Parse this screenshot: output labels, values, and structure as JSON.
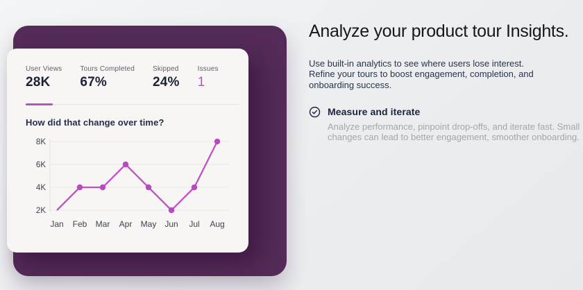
{
  "colors": {
    "panel_purple": "#542b58",
    "accent_magenta": "#bd53c5",
    "tab_indicator": "#b153c2",
    "dark_navy": "#1b2341",
    "card_bg": "#f7f6f4"
  },
  "card": {
    "stats": [
      {
        "label": "User Views",
        "value": "28K",
        "highlight": false
      },
      {
        "label": "Tours Completed",
        "value": "67%",
        "highlight": false
      },
      {
        "label": "Skipped",
        "value": "24%",
        "highlight": false
      },
      {
        "label": "Issues",
        "value": "1",
        "highlight": true
      }
    ],
    "chart_title": "How did that change over time?"
  },
  "chart_data": {
    "type": "line",
    "title": "How did that change over time?",
    "x": [
      "Jan",
      "Feb",
      "Mar",
      "Apr",
      "May",
      "Jun",
      "Jul",
      "Aug"
    ],
    "series": [
      {
        "name": "User Views",
        "values": [
          2000,
          4000,
          4000,
          6000,
          4000,
          2000,
          4000,
          8000
        ]
      }
    ],
    "xlabel": "",
    "ylabel": "",
    "ylim": [
      2000,
      8000
    ],
    "ytick_values": [
      2000,
      4000,
      6000,
      8000
    ],
    "ytick_labels": [
      "2K",
      "4K",
      "6K",
      "8K"
    ],
    "grid": true,
    "legend": false,
    "line_color": "#c052c6",
    "marker_color": "#b949c1",
    "show_first_marker": false
  },
  "content": {
    "heading": "Analyze your product tour Insights.",
    "intro_lines": [
      "Use built-in analytics to see where users lose interest.",
      "Refine your tours to boost engagement, completion, and",
      "onboarding success."
    ],
    "feature": {
      "title": "Measure and iterate",
      "description_lines": [
        "Analyze performance, pinpoint drop-offs, and iterate fast. Small",
        "changes can lead to better engagement, smoother onboarding."
      ]
    }
  }
}
